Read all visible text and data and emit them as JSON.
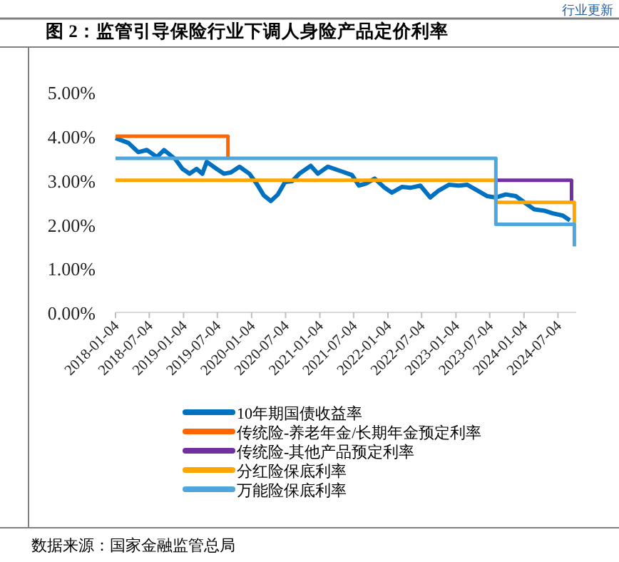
{
  "chart_data": {
    "type": "line",
    "title": "图 2：监管引导保险行业下调人身险产品定价利率",
    "annotations": [
      "行业更新",
      "数据来源：国家金融监管总局"
    ],
    "xlim": [
      "2018-01-04",
      "2024-10-10"
    ],
    "xticks": [
      "2018-01-04",
      "2018-07-04",
      "2019-01-04",
      "2019-07-04",
      "2020-01-04",
      "2020-07-04",
      "2021-01-04",
      "2021-07-04",
      "2022-01-04",
      "2022-07-04",
      "2023-01-04",
      "2023-07-04",
      "2024-01-04",
      "2024-07-04"
    ],
    "ylim": [
      0,
      5
    ],
    "yticks": [
      {
        "value": 0,
        "label": "0.00%"
      },
      {
        "value": 1,
        "label": "1.00%"
      },
      {
        "value": 2,
        "label": "2.00%"
      },
      {
        "value": 3,
        "label": "3.00%"
      },
      {
        "value": 4,
        "label": "4.00%"
      },
      {
        "value": 5,
        "label": "5.00%"
      }
    ],
    "grid": false,
    "legend": "bottom",
    "marker": "none",
    "line_style": "solid",
    "series": [
      {
        "name": "10年期国债收益率",
        "color": "#0070c0",
        "x": [
          "2018-01-04",
          "2018-03-14",
          "2018-05-06",
          "2018-06-21",
          "2018-08-14",
          "2018-09-21",
          "2018-11-21",
          "2018-12-29",
          "2019-02-05",
          "2019-03-15",
          "2019-04-15",
          "2019-05-08",
          "2019-06-30",
          "2019-08-08",
          "2019-09-15",
          "2019-10-31",
          "2019-12-23",
          "2020-01-30",
          "2020-03-09",
          "2020-04-16",
          "2020-05-24",
          "2020-07-01",
          "2020-08-08",
          "2020-09-16",
          "2020-11-16",
          "2020-12-24",
          "2021-02-15",
          "2021-05-03",
          "2021-06-25",
          "2021-08-02",
          "2021-09-10",
          "2021-10-25",
          "2021-12-18",
          "2022-01-25",
          "2022-03-20",
          "2022-05-04",
          "2022-06-27",
          "2022-08-19",
          "2022-10-04",
          "2022-11-27",
          "2023-01-19",
          "2023-03-06",
          "2023-04-29",
          "2023-06-21",
          "2023-08-06",
          "2023-09-28",
          "2023-11-21",
          "2024-01-06",
          "2024-02-28",
          "2024-04-22",
          "2024-06-06",
          "2024-07-30",
          "2024-09-06"
        ],
        "values": [
          3.96,
          3.85,
          3.64,
          3.69,
          3.53,
          3.69,
          3.48,
          3.26,
          3.15,
          3.26,
          3.15,
          3.42,
          3.26,
          3.15,
          3.18,
          3.31,
          3.15,
          2.93,
          2.66,
          2.53,
          2.68,
          2.96,
          2.98,
          3.15,
          3.33,
          3.15,
          3.31,
          3.2,
          3.12,
          2.88,
          2.93,
          3.04,
          2.83,
          2.72,
          2.85,
          2.83,
          2.88,
          2.61,
          2.77,
          2.9,
          2.88,
          2.9,
          2.77,
          2.64,
          2.61,
          2.68,
          2.64,
          2.5,
          2.34,
          2.31,
          2.25,
          2.2,
          2.09
        ]
      },
      {
        "name": "传统险-养老年金/长期年金预定利率",
        "color": "#ff6600",
        "type": "step",
        "x": [
          "2018-01-04",
          "2019-08-30"
        ],
        "values": [
          4.0,
          3.5
        ]
      },
      {
        "name": "传统险-其他产品预定利率",
        "color": "#7030a0",
        "type": "step",
        "x": [
          "2023-08-06",
          "2024-09-15"
        ],
        "values": [
          3.0,
          2.5
        ]
      },
      {
        "name": "分红险保底利率",
        "color": "#ffa500",
        "type": "step",
        "x": [
          "2018-01-04",
          "2023-08-06",
          "2024-09-30"
        ],
        "values": [
          3.0,
          2.5,
          2.0
        ]
      },
      {
        "name": "万能险保底利率",
        "color": "#4ea6dc",
        "type": "step",
        "x": [
          "2018-01-04",
          "2023-08-06",
          "2024-09-30"
        ],
        "values": [
          3.5,
          2.0,
          1.5
        ]
      }
    ]
  }
}
